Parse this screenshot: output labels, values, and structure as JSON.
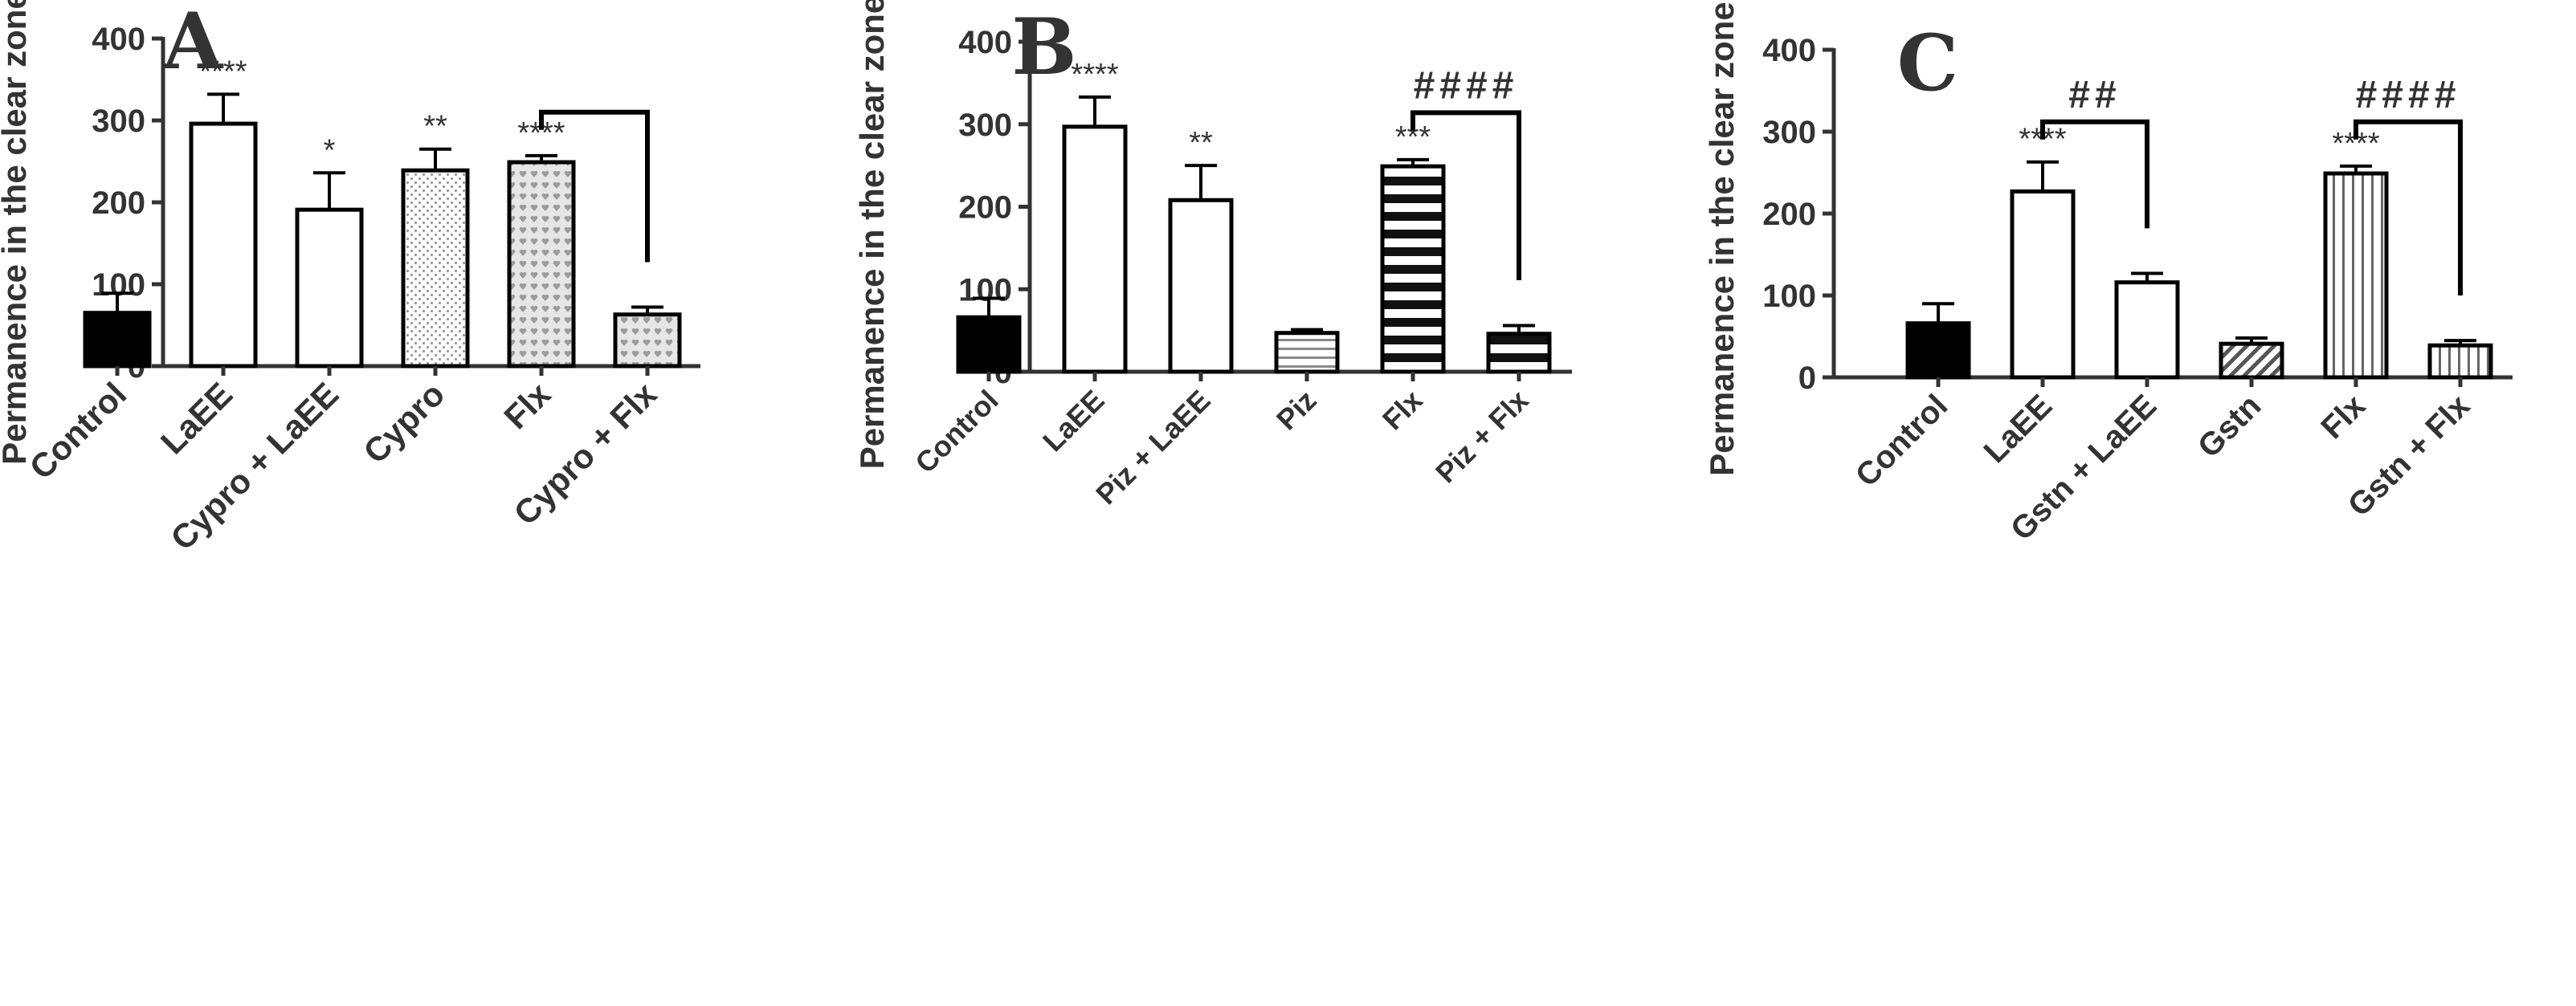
{
  "figure": {
    "ylabel": "Permanence in the clear zone (s)"
  },
  "chart_data": [
    {
      "type": "bar",
      "panel": "A",
      "ylabel": "Permanence in the clear zone (s)",
      "ylim": [
        0,
        400
      ],
      "yticks": [
        0,
        100,
        200,
        300,
        400
      ],
      "categories": [
        "Control",
        "LaEE",
        "Cypro + LaEE",
        "Cypro",
        "Flx",
        "Cypro + Flx"
      ],
      "values": [
        65,
        296,
        191,
        239,
        249,
        63
      ],
      "errors": [
        24,
        36,
        45,
        26,
        8,
        9
      ],
      "fills": [
        "solid-black",
        "white",
        "white",
        "dotted",
        "hearts",
        "hearts"
      ],
      "significance": [
        "",
        "****",
        "*",
        "**",
        "****",
        ""
      ],
      "comparison": {
        "from": 4,
        "to": 5,
        "label": "",
        "level": 310
      }
    },
    {
      "type": "bar",
      "panel": "B",
      "ylabel": "Permanence in the clear zone (s)",
      "ylim": [
        0,
        400
      ],
      "yticks": [
        0,
        100,
        200,
        300,
        400
      ],
      "categories": [
        "Control",
        "LaEE",
        "Piz + LaEE",
        "Piz",
        "Flx",
        "Piz + Flx"
      ],
      "values": [
        66,
        297,
        208,
        47,
        249,
        46
      ],
      "errors": [
        23,
        36,
        42,
        4,
        8,
        10
      ],
      "fills": [
        "solid-black",
        "white",
        "white",
        "horizontal-thin",
        "horizontal-thick",
        "horizontal-thick"
      ],
      "significance": [
        "",
        "****",
        "**",
        "",
        "***",
        ""
      ],
      "comparison": {
        "from": 4,
        "to": 5,
        "label": "####",
        "level": 314
      }
    },
    {
      "type": "bar",
      "panel": "C",
      "ylabel": "Permanence in the clear zone (s)",
      "ylim": [
        0,
        400
      ],
      "yticks": [
        0,
        100,
        200,
        300,
        400
      ],
      "categories": [
        "Control",
        "LaEE",
        "Gstn + LaEE",
        "Gstn",
        "Flx",
        "Gstn + Flx"
      ],
      "values": [
        66,
        227,
        116,
        41,
        249,
        39
      ],
      "errors": [
        24,
        36,
        11,
        7,
        9,
        6
      ],
      "fills": [
        "solid-black",
        "white",
        "white",
        "diagonal",
        "vertical",
        "vertical"
      ],
      "significance": [
        "",
        "****",
        "",
        "",
        "****",
        ""
      ],
      "comparisons": [
        {
          "from": 1,
          "to": 2,
          "label": "##",
          "level": 312
        },
        {
          "from": 4,
          "to": 5,
          "label": "####",
          "level": 312
        }
      ]
    }
  ]
}
